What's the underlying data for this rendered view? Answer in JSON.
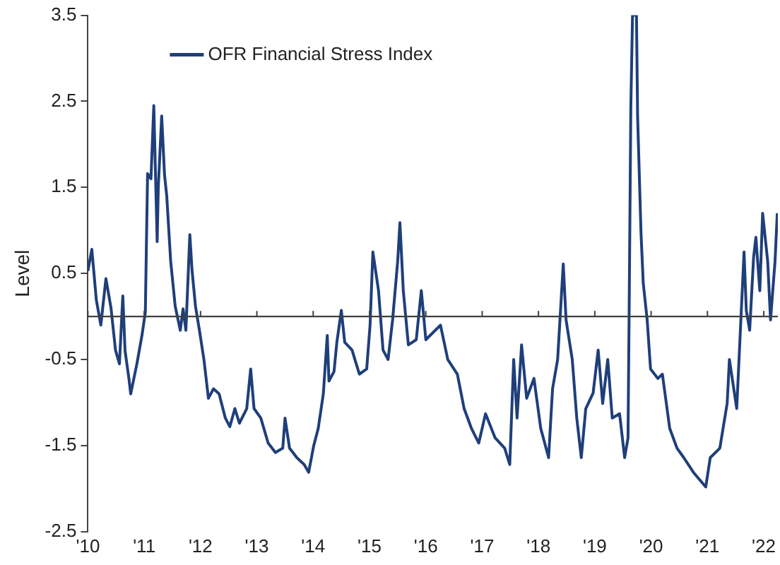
{
  "chart_data": {
    "type": "line",
    "ylabel": "Level",
    "xlim": [
      2010,
      2022.25
    ],
    "ylim": [
      -2.5,
      3.5
    ],
    "xticks": [
      {
        "value": 2010,
        "label": "'10"
      },
      {
        "value": 2011,
        "label": "'11"
      },
      {
        "value": 2012,
        "label": "'12"
      },
      {
        "value": 2013,
        "label": "'13"
      },
      {
        "value": 2014,
        "label": "'14"
      },
      {
        "value": 2015,
        "label": "'15"
      },
      {
        "value": 2016,
        "label": "'16"
      },
      {
        "value": 2017,
        "label": "'17"
      },
      {
        "value": 2018,
        "label": "'18"
      },
      {
        "value": 2019,
        "label": "'19"
      },
      {
        "value": 2020,
        "label": "'20"
      },
      {
        "value": 2021,
        "label": "'21"
      },
      {
        "value": 2022,
        "label": "'22"
      }
    ],
    "yticks": [
      -2.5,
      -1.5,
      -0.5,
      0.5,
      1.5,
      2.5,
      3.5
    ],
    "grid": false,
    "legend": "top left",
    "marker": "none",
    "line_style": "solid",
    "ref_lines": [
      {
        "axis": "y",
        "value": 0,
        "color": "#404040"
      }
    ],
    "series": [
      {
        "name": "OFR Financial Stress Index",
        "color": "#1f3f7a",
        "x": [
          2010.0,
          2010.07,
          2010.15,
          2010.23,
          2010.32,
          2010.41,
          2010.49,
          2010.56,
          2010.62,
          2010.66,
          2010.73,
          2010.76,
          2010.87,
          2010.96,
          2011.02,
          2011.04,
          2011.06,
          2011.12,
          2011.17,
          2011.23,
          2011.25,
          2011.31,
          2011.36,
          2011.4,
          2011.47,
          2011.55,
          2011.64,
          2011.69,
          2011.74,
          2011.81,
          2011.85,
          2011.91,
          2011.98,
          2012.06,
          2012.14,
          2012.23,
          2012.33,
          2012.44,
          2012.52,
          2012.61,
          2012.69,
          2012.82,
          2012.89,
          2012.95,
          2013.07,
          2013.2,
          2013.33,
          2013.46,
          2013.5,
          2013.58,
          2013.71,
          2013.84,
          2013.92,
          2014.01,
          2014.09,
          2014.18,
          2014.25,
          2014.28,
          2014.37,
          2014.42,
          2014.5,
          2014.56,
          2014.69,
          2014.82,
          2014.95,
          2015.01,
          2015.06,
          2015.16,
          2015.24,
          2015.33,
          2015.41,
          2015.5,
          2015.54,
          2015.6,
          2015.69,
          2015.83,
          2015.92,
          2016.0,
          2016.26,
          2016.39,
          2016.56,
          2016.68,
          2016.81,
          2016.94,
          2017.06,
          2017.23,
          2017.4,
          2017.49,
          2017.56,
          2017.62,
          2017.7,
          2017.79,
          2017.92,
          2018.04,
          2018.18,
          2018.25,
          2018.34,
          2018.44,
          2018.49,
          2018.6,
          2018.68,
          2018.76,
          2018.84,
          2018.97,
          2019.06,
          2019.14,
          2019.23,
          2019.31,
          2019.44,
          2019.53,
          2019.59,
          2019.61,
          2019.64,
          2019.67,
          2019.74,
          2019.76,
          2019.82,
          2019.86,
          2019.93,
          2019.99,
          2020.12,
          2020.2,
          2020.33,
          2020.46,
          2020.58,
          2020.75,
          2020.97,
          2021.05,
          2021.22,
          2021.35,
          2021.39,
          2021.52,
          2021.65,
          2021.69,
          2021.75,
          2021.82,
          2021.86,
          2021.93,
          2021.98,
          2022.07,
          2022.12,
          2022.2,
          2022.24
        ],
        "values": [
          0.53,
          0.78,
          0.19,
          -0.1,
          0.44,
          0.1,
          -0.39,
          -0.55,
          0.24,
          -0.4,
          -0.73,
          -0.9,
          -0.55,
          -0.22,
          0.05,
          0.87,
          1.66,
          1.6,
          2.45,
          0.87,
          1.5,
          2.33,
          1.65,
          1.4,
          0.64,
          0.12,
          -0.16,
          0.09,
          -0.16,
          0.95,
          0.53,
          0.12,
          -0.16,
          -0.5,
          -0.95,
          -0.84,
          -0.9,
          -1.18,
          -1.28,
          -1.07,
          -1.24,
          -1.07,
          -0.61,
          -1.07,
          -1.18,
          -1.47,
          -1.58,
          -1.53,
          -1.18,
          -1.53,
          -1.64,
          -1.72,
          -1.81,
          -1.5,
          -1.3,
          -0.9,
          -0.22,
          -0.75,
          -0.64,
          -0.3,
          0.07,
          -0.3,
          -0.39,
          -0.67,
          -0.61,
          -0.1,
          0.75,
          0.3,
          -0.39,
          -0.5,
          -0.04,
          0.64,
          1.09,
          0.3,
          -0.33,
          -0.27,
          0.3,
          -0.27,
          -0.1,
          -0.5,
          -0.67,
          -1.07,
          -1.3,
          -1.47,
          -1.13,
          -1.41,
          -1.53,
          -1.72,
          -0.5,
          -1.18,
          -0.33,
          -0.95,
          -0.72,
          -1.3,
          -1.64,
          -0.84,
          -0.5,
          0.61,
          -0.04,
          -0.5,
          -1.18,
          -1.64,
          -1.07,
          -0.89,
          -0.39,
          -1.01,
          -0.5,
          -1.18,
          -1.13,
          -1.64,
          -1.41,
          0.07,
          2.45,
          3.5,
          3.5,
          2.33,
          0.98,
          0.39,
          -0.04,
          -0.61,
          -0.72,
          -0.67,
          -1.3,
          -1.53,
          -1.64,
          -1.81,
          -1.98,
          -1.64,
          -1.53,
          -1.01,
          -0.5,
          -1.07,
          0.75,
          0.07,
          -0.16,
          0.69,
          0.92,
          0.3,
          1.2,
          0.64,
          -0.04,
          0.64,
          1.2
        ]
      }
    ]
  }
}
